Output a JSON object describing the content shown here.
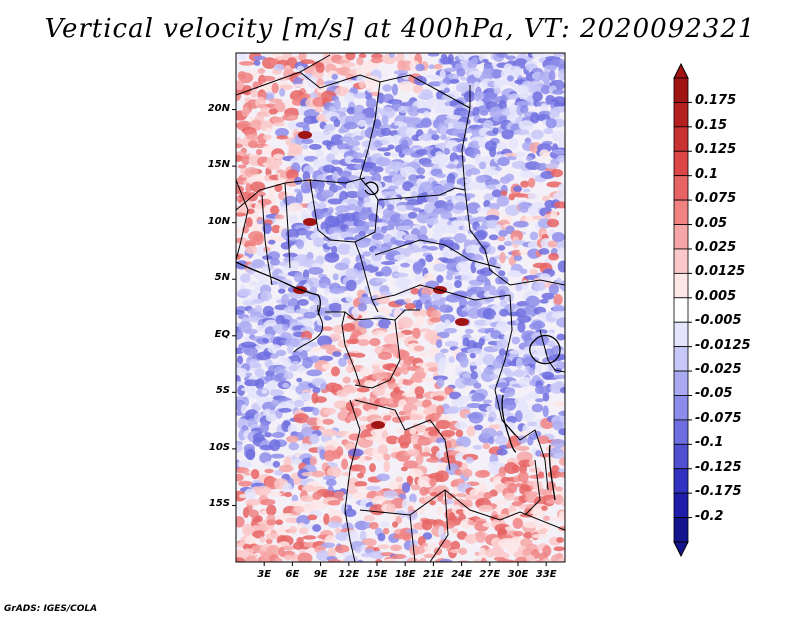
{
  "title": "Vertical velocity [m/s] at 400hPa, VT: 2020092321",
  "footer": "GrADS: IGES/COLA",
  "map": {
    "lat_labels": [
      "20N",
      "15N",
      "10N",
      "5N",
      "EQ",
      "5S",
      "10S",
      "15S"
    ],
    "lat_values": [
      20,
      15,
      10,
      5,
      0,
      -5,
      -10,
      -15
    ],
    "lon_labels": [
      "3E",
      "6E",
      "9E",
      "12E",
      "15E",
      "18E",
      "21E",
      "24E",
      "27E",
      "30E",
      "33E"
    ],
    "lon_values": [
      3,
      6,
      9,
      12,
      15,
      18,
      21,
      24,
      27,
      30,
      33
    ],
    "lat_range": [
      -20,
      25
    ],
    "lon_range": [
      0,
      35
    ]
  },
  "colorbar": {
    "levels": [
      "0.175",
      "0.15",
      "0.125",
      "0.1",
      "0.075",
      "0.05",
      "0.025",
      "0.0125",
      "0.005",
      "-0.005",
      "-0.0125",
      "-0.025",
      "-0.05",
      "-0.075",
      "-0.1",
      "-0.125",
      "-0.175",
      "-0.2"
    ],
    "colors": [
      "#a01414",
      "#b42020",
      "#c83232",
      "#dc4646",
      "#e86464",
      "#f08282",
      "#f6a6a6",
      "#fac8c8",
      "#fde6e6",
      "#ffffff",
      "#e4e4fc",
      "#c8c8f8",
      "#aaaaf2",
      "#8c8cea",
      "#6e6ee0",
      "#5050d2",
      "#3232c0",
      "#1e1eaa",
      "#14148c"
    ]
  },
  "colors": {
    "positive": "#e05050",
    "negative": "#5a5ae0",
    "border": "#000000"
  }
}
